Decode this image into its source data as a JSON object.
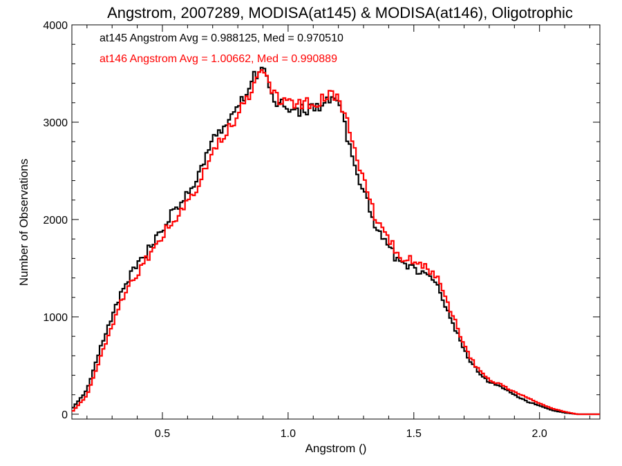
{
  "chart_data": {
    "type": "line",
    "step": true,
    "title": "Angstrom, 2007289, MODISA(at145) & MODISA(at146), Oligotrophic",
    "xlabel": "Angstrom ()",
    "ylabel": "Number of Observations",
    "xlim": [
      0.14,
      2.24
    ],
    "ylim": [
      -50,
      4000
    ],
    "x_ticks": [
      0.5,
      1.0,
      1.5,
      2.0
    ],
    "x_tick_labels": [
      "0.5",
      "1.0",
      "1.5",
      "2.0"
    ],
    "y_ticks": [
      0,
      1000,
      2000,
      3000,
      4000
    ],
    "y_tick_labels": [
      "0",
      "1000",
      "2000",
      "3000",
      "4000"
    ],
    "grid": false,
    "annotations": [
      {
        "text": "at145 Angstrom Avg = 0.988125, Med = 0.970510",
        "color": "#000000"
      },
      {
        "text": "at146 Angstrom Avg = 1.00662, Med = 0.990889",
        "color": "#ff0000"
      }
    ],
    "series": [
      {
        "color": "#000000",
        "x": [
          0.14,
          0.2,
          0.25,
          0.3,
          0.35,
          0.4,
          0.45,
          0.5,
          0.55,
          0.6,
          0.65,
          0.7,
          0.75,
          0.8,
          0.85,
          0.9,
          0.95,
          1.0,
          1.05,
          1.1,
          1.15,
          1.2,
          1.25,
          1.3,
          1.35,
          1.4,
          1.45,
          1.5,
          1.55,
          1.6,
          1.65,
          1.7,
          1.75,
          1.8,
          1.85,
          1.9,
          1.95,
          2.0,
          2.05,
          2.1,
          2.15,
          2.24
        ],
        "y": [
          50,
          250,
          650,
          1000,
          1320,
          1550,
          1700,
          1900,
          2100,
          2250,
          2500,
          2800,
          3000,
          3150,
          3400,
          3600,
          3200,
          3150,
          3120,
          3150,
          3200,
          3200,
          2700,
          2300,
          1900,
          1700,
          1550,
          1500,
          1450,
          1280,
          980,
          650,
          450,
          330,
          280,
          200,
          130,
          90,
          40,
          15,
          0,
          0
        ]
      },
      {
        "color": "#ff0000",
        "x": [
          0.14,
          0.2,
          0.25,
          0.3,
          0.35,
          0.4,
          0.45,
          0.5,
          0.55,
          0.6,
          0.65,
          0.7,
          0.75,
          0.8,
          0.85,
          0.9,
          0.95,
          1.0,
          1.05,
          1.1,
          1.15,
          1.2,
          1.25,
          1.3,
          1.35,
          1.4,
          1.45,
          1.5,
          1.55,
          1.6,
          1.65,
          1.7,
          1.75,
          1.8,
          1.85,
          1.9,
          1.95,
          2.0,
          2.05,
          2.1,
          2.15,
          2.24
        ],
        "y": [
          20,
          190,
          550,
          900,
          1250,
          1450,
          1650,
          1850,
          2000,
          2150,
          2400,
          2700,
          2850,
          3100,
          3300,
          3550,
          3250,
          3200,
          3180,
          3200,
          3250,
          3300,
          2850,
          2400,
          2000,
          1780,
          1620,
          1580,
          1500,
          1400,
          1050,
          700,
          480,
          350,
          300,
          230,
          170,
          110,
          60,
          25,
          0,
          0
        ]
      }
    ]
  }
}
